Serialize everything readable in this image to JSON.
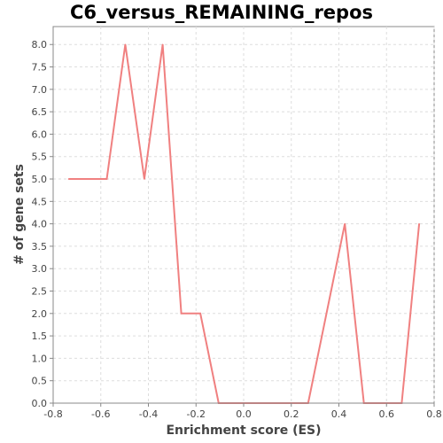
{
  "chart_data": {
    "type": "line",
    "title": "C6_versus_REMAINING_repos",
    "xlabel": "Enrichment score (ES)",
    "ylabel": "# of gene sets",
    "xlim": [
      -0.8,
      0.8
    ],
    "ylim": [
      0.0,
      8.4
    ],
    "xticks": [
      "-0.8",
      "-0.6",
      "-0.4",
      "-0.2",
      "0.0",
      "0.2",
      "0.4",
      "0.6",
      "0.8"
    ],
    "yticks": [
      "0.0",
      "0.5",
      "1.0",
      "1.5",
      "2.0",
      "2.5",
      "3.0",
      "3.5",
      "4.0",
      "4.5",
      "5.0",
      "5.5",
      "6.0",
      "6.5",
      "7.0",
      "7.5",
      "8.0"
    ],
    "grid": true,
    "series": [
      {
        "color": "#f08080",
        "x": [
          -0.735,
          -0.575,
          -0.497,
          -0.417,
          -0.34,
          -0.262,
          -0.182,
          -0.105,
          0.271,
          0.425,
          0.505,
          0.664,
          0.737
        ],
        "y": [
          5,
          5,
          8,
          5,
          8,
          2,
          2,
          0,
          0,
          4,
          0,
          0,
          4
        ]
      }
    ]
  }
}
